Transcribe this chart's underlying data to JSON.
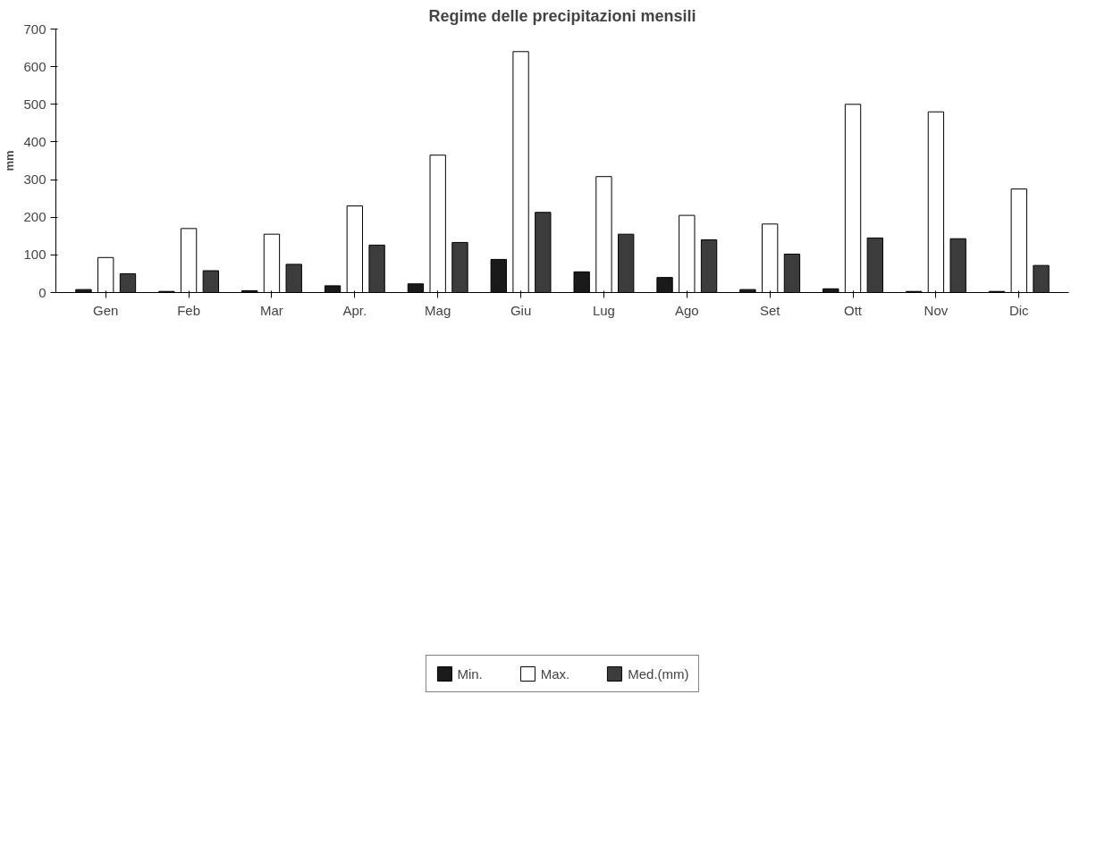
{
  "chart_data": {
    "type": "bar",
    "title": "Regime delle precipitazioni mensili",
    "ylabel": "mm",
    "categories": [
      "Gen",
      "Feb",
      "Mar",
      "Apr.",
      "Mag",
      "Giu",
      "Lug",
      "Ago",
      "Set",
      "Ott",
      "Nov",
      "Dic"
    ],
    "series": [
      {
        "name": "Min.",
        "color": "#1a1a1a",
        "values": [
          8,
          3,
          5,
          18,
          23,
          88,
          55,
          40,
          8,
          10,
          3,
          3
        ]
      },
      {
        "name": "Max.",
        "color": "#ffffff",
        "values": [
          93,
          170,
          155,
          230,
          365,
          640,
          308,
          205,
          182,
          500,
          480,
          275
        ]
      },
      {
        "name": "Med.(mm)",
        "color": "#3c3c3c",
        "values": [
          50,
          58,
          75,
          126,
          133,
          213,
          155,
          140,
          102,
          145,
          143,
          72
        ]
      }
    ],
    "ylim": [
      0,
      700
    ],
    "yticks": [
      0,
      100,
      200,
      300,
      400,
      500,
      600,
      700
    ],
    "grid": false,
    "legend": "bottom"
  }
}
